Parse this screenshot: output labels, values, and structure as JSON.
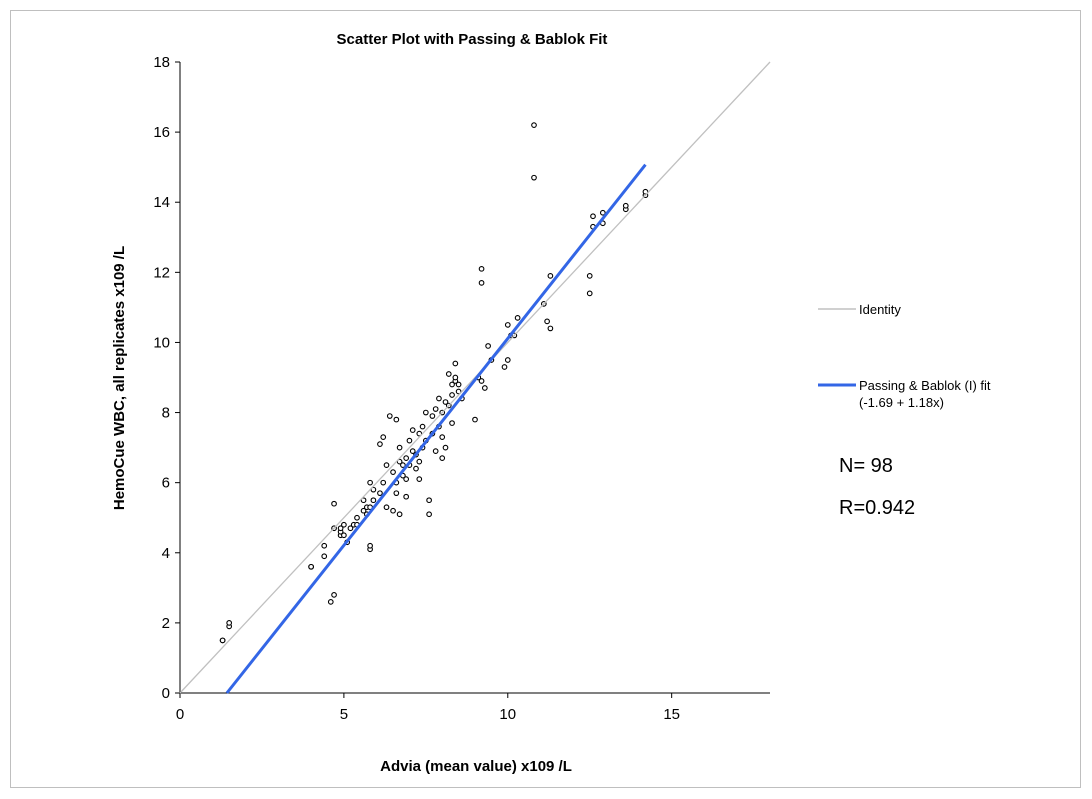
{
  "chart_data": {
    "type": "scatter",
    "title": "Scatter Plot with Passing & Bablok Fit",
    "xlabel": "Advia (mean value) x109 /L",
    "ylabel": "HemoCue WBC, all replicates  x109 /L",
    "xlim": [
      0,
      18
    ],
    "ylim": [
      0,
      18
    ],
    "xticks": [
      0,
      5,
      10,
      15
    ],
    "yticks": [
      0,
      2,
      4,
      6,
      8,
      10,
      12,
      14,
      16,
      18
    ],
    "grid": false,
    "legend_position": "right",
    "colors": {
      "points": "#000000",
      "identity": "#c0c0c0",
      "fit": "#3366e6"
    },
    "series": [
      {
        "kind": "points",
        "x": [
          1.3,
          1.3,
          1.5,
          1.5,
          4.0,
          4.0,
          4.4,
          4.4,
          4.6,
          4.7,
          4.7,
          4.7,
          4.9,
          4.9,
          4.9,
          5.0,
          5.0,
          5.1,
          5.2,
          5.3,
          5.4,
          5.4,
          5.6,
          5.6,
          5.7,
          5.7,
          5.8,
          5.8,
          5.8,
          5.8,
          5.9,
          5.9,
          6.1,
          6.1,
          6.2,
          6.2,
          6.3,
          6.3,
          6.4,
          6.5,
          6.5,
          6.6,
          6.6,
          6.6,
          6.7,
          6.7,
          6.7,
          6.8,
          6.8,
          6.9,
          6.9,
          6.9,
          7.0,
          7.0,
          7.1,
          7.1,
          7.2,
          7.2,
          7.3,
          7.3,
          7.3,
          7.4,
          7.4,
          7.5,
          7.5,
          7.6,
          7.6,
          7.7,
          7.7,
          7.8,
          7.8,
          7.9,
          7.9,
          8.0,
          8.0,
          8.0,
          8.1,
          8.1,
          8.2,
          8.2,
          8.3,
          8.3,
          8.3,
          8.4,
          8.4,
          8.4,
          8.5,
          8.5,
          8.6,
          9.0,
          9.1,
          9.2,
          9.2,
          9.2,
          9.3,
          9.4,
          9.5,
          9.9,
          10.0,
          10.0,
          10.1,
          10.2,
          10.3,
          10.8,
          10.8,
          11.1,
          11.2,
          11.3,
          11.3,
          12.5,
          12.5,
          12.6,
          12.6,
          12.9,
          12.9,
          13.6,
          13.6,
          14.2,
          14.2
        ],
        "y": [
          1.5,
          1.5,
          1.9,
          2.0,
          3.6,
          3.6,
          3.9,
          4.2,
          2.6,
          2.8,
          4.7,
          5.4,
          4.5,
          4.6,
          4.7,
          4.5,
          4.8,
          4.3,
          4.7,
          4.8,
          4.8,
          5.0,
          5.2,
          5.5,
          5.1,
          5.3,
          4.1,
          4.2,
          5.3,
          6.0,
          5.8,
          5.5,
          5.7,
          7.1,
          6.0,
          7.3,
          5.3,
          6.5,
          7.9,
          5.2,
          6.3,
          5.7,
          6.0,
          7.8,
          6.6,
          7.0,
          5.1,
          6.2,
          6.5,
          5.6,
          6.7,
          6.1,
          6.5,
          7.2,
          6.9,
          7.5,
          6.4,
          6.8,
          6.6,
          7.4,
          6.1,
          7.0,
          7.6,
          7.2,
          8.0,
          5.1,
          5.5,
          7.4,
          7.9,
          6.9,
          8.1,
          7.6,
          8.4,
          6.7,
          7.3,
          8.0,
          7.0,
          8.3,
          8.2,
          9.1,
          8.5,
          8.8,
          7.7,
          8.9,
          9.0,
          9.4,
          8.6,
          8.8,
          8.4,
          7.8,
          9.0,
          8.9,
          12.1,
          11.7,
          8.7,
          9.9,
          9.5,
          9.3,
          9.5,
          10.5,
          10.2,
          10.2,
          10.7,
          16.2,
          14.7,
          11.1,
          10.6,
          11.9,
          10.4,
          11.9,
          11.4,
          13.6,
          13.3,
          13.7,
          13.4,
          13.8,
          13.9,
          14.2,
          14.3
        ]
      },
      {
        "kind": "line",
        "name": "Identity",
        "x": [
          0,
          18
        ],
        "y": [
          0,
          18
        ]
      },
      {
        "kind": "line",
        "name": "Passing & Bablok (I) fit",
        "x": [
          1.43,
          14.2
        ],
        "y": [
          0.0,
          15.07
        ]
      }
    ],
    "legend": [
      {
        "label": "Identity",
        "color": "#c0c0c0"
      },
      {
        "label": "Passing & Bablok (I) fit",
        "sublabel": "(-1.69 + 1.18x)",
        "color": "#3366e6"
      }
    ],
    "annotations": [
      "N= 98",
      "R=0.942"
    ]
  }
}
